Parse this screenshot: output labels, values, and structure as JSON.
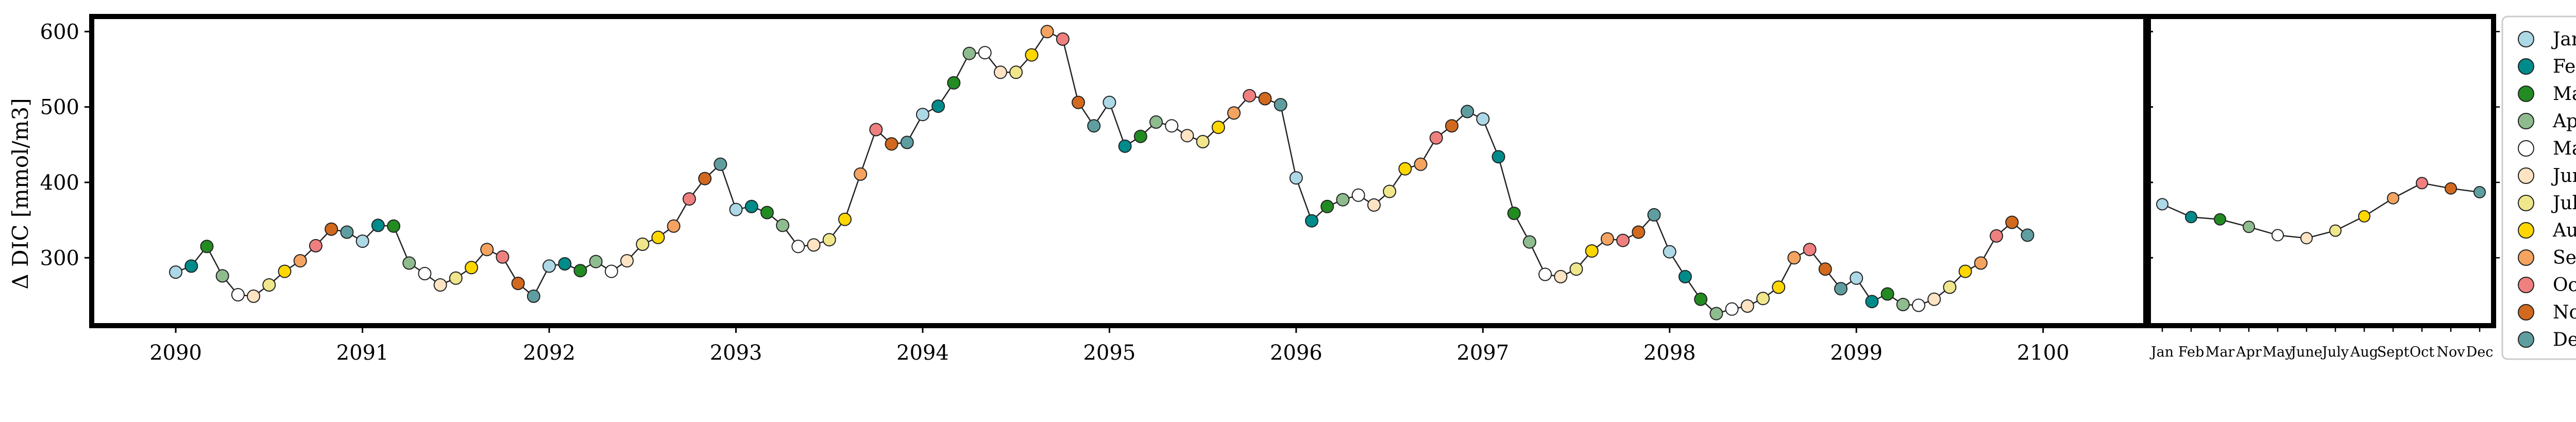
{
  "chart_data": [
    {
      "type": "line",
      "ylabel": "Δ DIC [mmol/m3]",
      "xlabel": "",
      "ylim": [
        210,
        620
      ],
      "xlim": [
        2089.55,
        2100.55
      ],
      "x_ticks": [
        "2090",
        "2091",
        "2092",
        "2093",
        "2094",
        "2095",
        "2096",
        "2097",
        "2098",
        "2099",
        "2100"
      ],
      "y_ticks": [
        "300",
        "400",
        "500",
        "600"
      ],
      "grid": false,
      "start": {
        "year": 2090,
        "month": 1
      },
      "series": [
        {
          "values": [
            281,
            289,
            315,
            276,
            251,
            249,
            264,
            282,
            296,
            316,
            338,
            334,
            322,
            343,
            342,
            293,
            279,
            264,
            273,
            287,
            311,
            301,
            266,
            249,
            289,
            292,
            283,
            295,
            282,
            296,
            318,
            327,
            342,
            378,
            405,
            424,
            364,
            368,
            360,
            343,
            315,
            317,
            324,
            351,
            411,
            470,
            451,
            453,
            490,
            501,
            532,
            571,
            572,
            546,
            546,
            569,
            600,
            590,
            506,
            475,
            506,
            448,
            461,
            480,
            475,
            462,
            454,
            473,
            492,
            515,
            511,
            503,
            406,
            349,
            368,
            377,
            383,
            370,
            388,
            418,
            424,
            459,
            475,
            494,
            484,
            434,
            359,
            321,
            278,
            275,
            285,
            309,
            325,
            323,
            334,
            357,
            308,
            275,
            245,
            226,
            232,
            236,
            246,
            261,
            300,
            311,
            285,
            259,
            273,
            242,
            252,
            238,
            237,
            245,
            261,
            282,
            293,
            329,
            347,
            330
          ]
        }
      ]
    },
    {
      "type": "line",
      "categories": [
        "Jan",
        "Feb",
        "Mar",
        "Apr",
        "May",
        "June",
        "July",
        "Aug",
        "Sept",
        "Oct",
        "Nov",
        "Dec"
      ],
      "ylim": [
        210,
        620
      ],
      "grid": false,
      "series": [
        {
          "values": [
            371,
            354,
            351,
            341,
            330,
            326,
            336,
            355,
            379,
            399,
            392,
            387
          ]
        }
      ]
    }
  ],
  "legend": {
    "placement": "right",
    "entries": [
      {
        "label": "Jan",
        "color": "#add8e6"
      },
      {
        "label": "Feb",
        "color": "#008b8b"
      },
      {
        "label": "Mar",
        "color": "#228b22"
      },
      {
        "label": "Apr",
        "color": "#8fbc8f"
      },
      {
        "label": "May",
        "color": "#ffffff"
      },
      {
        "label": "June",
        "color": "#ffe4c4"
      },
      {
        "label": "July",
        "color": "#f0e68c"
      },
      {
        "label": "Aug",
        "color": "#ffd700"
      },
      {
        "label": "Sept",
        "color": "#f4a460"
      },
      {
        "label": "Oct",
        "color": "#f08080"
      },
      {
        "label": "Nov",
        "color": "#d2691e"
      },
      {
        "label": "Dec",
        "color": "#5f9ea0"
      }
    ]
  }
}
